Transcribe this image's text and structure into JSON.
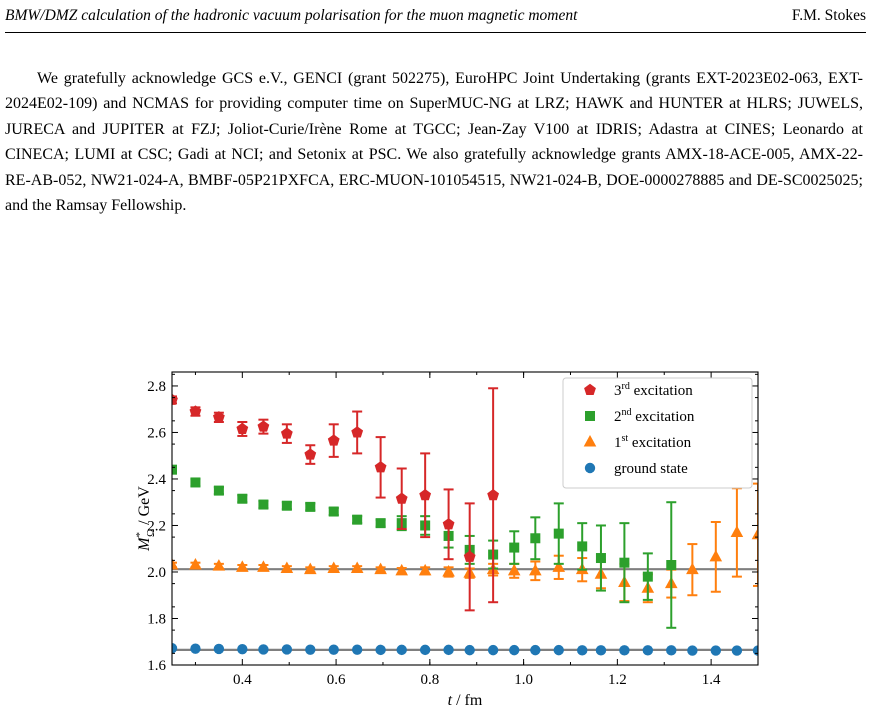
{
  "header": {
    "title": "BMW/DMZ calculation of the hadronic vacuum polarisation for the muon magnetic moment",
    "author": "F.M. Stokes"
  },
  "acknowledgement": "We gratefully acknowledge GCS e.V., GENCI (grant 502275), EuroHPC Joint Undertaking (grants EXT-2023E02-063, EXT-2024E02-109) and NCMAS for providing computer time on SuperMUC-NG at LRZ; HAWK and HUNTER at HLRS; JUWELS, JURECA and JUPITER at FZJ; Joliot-Curie/Irène Rome at TGCC; Jean-Zay V100 at IDRIS; Adastra at CINES; Leonardo at CINECA; LUMI at CSC; Gadi at NCI; and Setonix at PSC. We also gratefully acknowledge grants AMX-18-ACE-005, AMX-22-RE-AB-052, NW21-024-A, BMBF-05P21PXFCA, ERC-MUON-101054515, NW21-024-B, DOE-0000278885 and DE-SC0025025; and the Ramsay Fellowship.",
  "chart_data": {
    "type": "scatter",
    "xlabel": "t / fm",
    "ylabel": "M*_Ω / GeV",
    "xlim": [
      0.25,
      1.5
    ],
    "ylim": [
      1.6,
      2.86
    ],
    "xticks": [
      "0.4",
      "0.6",
      "0.8",
      "1.0",
      "1.2",
      "1.4"
    ],
    "yticks": [
      "1.6",
      "1.8",
      "2.0",
      "2.2",
      "2.4",
      "2.6",
      "2.8"
    ],
    "legend_position": "top-right",
    "reference_lines": [
      2.012,
      1.665
    ],
    "series": [
      {
        "name": "3rd excitation",
        "marker": "pentagon",
        "color": "#d62728",
        "x": [
          0.25,
          0.3,
          0.35,
          0.4,
          0.445,
          0.495,
          0.545,
          0.595,
          0.645,
          0.695,
          0.74,
          0.79,
          0.84,
          0.885,
          0.935
        ],
        "y": [
          2.74,
          2.69,
          2.665,
          2.615,
          2.625,
          2.595,
          2.505,
          2.565,
          2.6,
          2.45,
          2.315,
          2.33,
          2.205,
          2.065,
          2.33
        ],
        "err": [
          0.015,
          0.018,
          0.02,
          0.03,
          0.03,
          0.04,
          0.04,
          0.07,
          0.09,
          0.13,
          0.13,
          0.18,
          0.15,
          0.23,
          0.46
        ]
      },
      {
        "name": "2nd excitation",
        "marker": "square",
        "color": "#2ca02c",
        "x": [
          0.25,
          0.3,
          0.35,
          0.4,
          0.445,
          0.495,
          0.545,
          0.595,
          0.645,
          0.695,
          0.74,
          0.79,
          0.84,
          0.885,
          0.935,
          0.98,
          1.025,
          1.075,
          1.125,
          1.165,
          1.215,
          1.265,
          1.315
        ],
        "y": [
          2.44,
          2.385,
          2.35,
          2.315,
          2.29,
          2.285,
          2.28,
          2.26,
          2.225,
          2.21,
          2.21,
          2.2,
          2.155,
          2.095,
          2.075,
          2.105,
          2.145,
          2.165,
          2.11,
          2.06,
          2.04,
          1.98,
          2.03
        ],
        "err": [
          0.015,
          0.015,
          0.015,
          0.015,
          0.015,
          0.015,
          0.015,
          0.015,
          0.015,
          0.015,
          0.03,
          0.04,
          0.05,
          0.06,
          0.06,
          0.07,
          0.09,
          0.13,
          0.1,
          0.14,
          0.17,
          0.1,
          0.27
        ]
      },
      {
        "name": "1st excitation",
        "marker": "triangle",
        "color": "#ff7f0e",
        "x": [
          0.25,
          0.3,
          0.35,
          0.4,
          0.445,
          0.495,
          0.545,
          0.595,
          0.645,
          0.695,
          0.74,
          0.79,
          0.84,
          0.885,
          0.935,
          0.98,
          1.025,
          1.075,
          1.125,
          1.165,
          1.215,
          1.265,
          1.315,
          1.36,
          1.41,
          1.455,
          1.5
        ],
        "y": [
          2.03,
          2.03,
          2.025,
          2.02,
          2.02,
          2.015,
          2.01,
          2.015,
          2.015,
          2.01,
          2.005,
          2.005,
          2.0,
          1.995,
          2.01,
          2.005,
          2.005,
          2.02,
          2.01,
          1.99,
          1.955,
          1.93,
          1.95,
          2.01,
          2.065,
          2.17,
          2.16
        ],
        "err": [
          0.01,
          0.01,
          0.01,
          0.01,
          0.01,
          0.01,
          0.01,
          0.01,
          0.01,
          0.01,
          0.012,
          0.015,
          0.02,
          0.02,
          0.025,
          0.03,
          0.04,
          0.05,
          0.05,
          0.06,
          0.08,
          0.06,
          0.06,
          0.11,
          0.15,
          0.19,
          0.22
        ]
      },
      {
        "name": "ground state",
        "marker": "circle",
        "color": "#1f77b4",
        "x": [
          0.25,
          0.3,
          0.35,
          0.4,
          0.445,
          0.495,
          0.545,
          0.595,
          0.645,
          0.695,
          0.74,
          0.79,
          0.84,
          0.885,
          0.935,
          0.98,
          1.025,
          1.075,
          1.125,
          1.165,
          1.215,
          1.265,
          1.315,
          1.36,
          1.41,
          1.455,
          1.5
        ],
        "y": [
          1.672,
          1.67,
          1.669,
          1.668,
          1.667,
          1.667,
          1.666,
          1.666,
          1.666,
          1.665,
          1.665,
          1.665,
          1.665,
          1.664,
          1.664,
          1.664,
          1.664,
          1.664,
          1.663,
          1.663,
          1.663,
          1.663,
          1.663,
          1.662,
          1.662,
          1.662,
          1.662
        ],
        "err": [
          0.004,
          0.004,
          0.004,
          0.004,
          0.004,
          0.004,
          0.004,
          0.004,
          0.004,
          0.004,
          0.004,
          0.004,
          0.004,
          0.004,
          0.004,
          0.004,
          0.004,
          0.004,
          0.004,
          0.004,
          0.004,
          0.004,
          0.004,
          0.004,
          0.004,
          0.004,
          0.004
        ]
      }
    ]
  }
}
